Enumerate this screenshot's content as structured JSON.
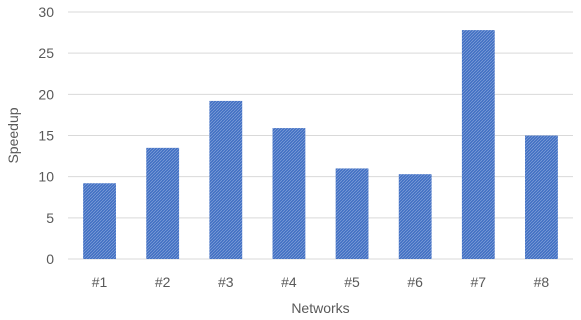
{
  "chart_data": {
    "type": "bar",
    "categories": [
      "#1",
      "#2",
      "#3",
      "#4",
      "#5",
      "#6",
      "#7",
      "#8"
    ],
    "values": [
      9.2,
      13.5,
      19.2,
      15.9,
      11.0,
      10.3,
      27.8,
      15.0
    ],
    "xlabel": "Networks",
    "ylabel": "Speedup",
    "ylim": [
      0,
      30
    ],
    "yticks": [
      0,
      5,
      10,
      15,
      20,
      25,
      30
    ],
    "grid": true,
    "legend": "none",
    "bar_color": "#4472c4",
    "grid_color": "#d9d9d9",
    "text_color": "#595959"
  }
}
